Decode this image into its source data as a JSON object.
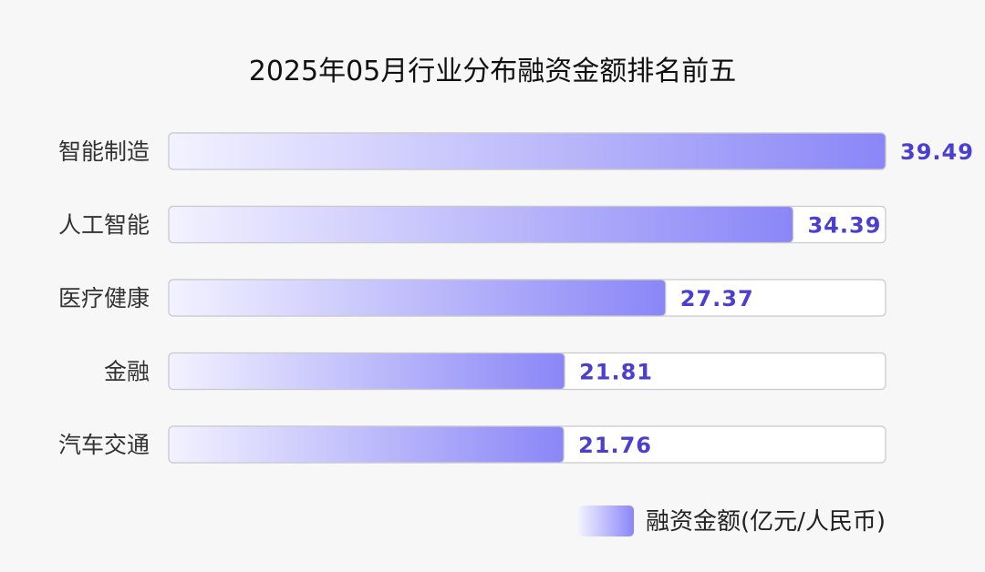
{
  "colors": {
    "background": "#f7f7f8",
    "bar_start": "#f3f2ff",
    "bar_end": "#8a86f7",
    "track_fill": "#ffffff",
    "track_stroke": "#c9c9cf",
    "value_text": "#4a3fd0"
  },
  "chart_data": {
    "type": "bar",
    "orientation": "horizontal",
    "title": "2025年05月行业分布融资金额排名前五",
    "categories": [
      "智能制造",
      "人工智能",
      "医疗健康",
      "金融",
      "汽车交通"
    ],
    "series": [
      {
        "name": "融资金额(亿元/人民币)",
        "values": [
          39.49,
          34.39,
          27.37,
          21.81,
          21.76
        ]
      }
    ],
    "xlim": [
      0,
      39.49
    ],
    "grid": false,
    "legend_position": "bottom-right"
  }
}
